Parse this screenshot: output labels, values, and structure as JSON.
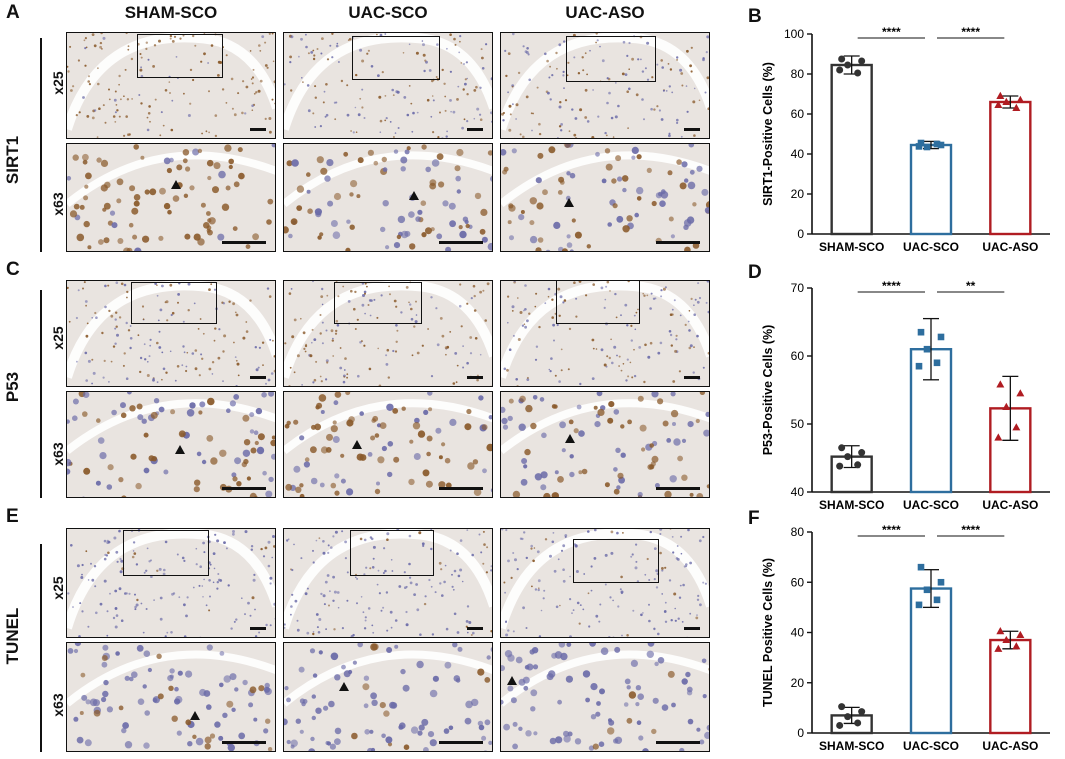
{
  "panel_letters": [
    "A",
    "B",
    "C",
    "D",
    "E",
    "F"
  ],
  "column_headers": [
    "SHAM-SCO",
    "UAC-SCO",
    "UAC-ASO"
  ],
  "row_groups": [
    "SIRT1",
    "P53",
    "TUNEL"
  ],
  "magnifications": [
    "x25",
    "x63"
  ],
  "colors": {
    "SHAM-SCO": "#333333",
    "UAC-SCO": "#2e6e9e",
    "UAC-ASO": "#b01c22",
    "tissue_brown_stain": "#8a5a2b",
    "tissue_hematoxylin": "#6b6ba8",
    "tissue_background": "#e9e4e0"
  },
  "chart_data": [
    {
      "type": "bar",
      "panel": "B",
      "categories": [
        "SHAM-SCO",
        "UAC-SCO",
        "UAC-ASO"
      ],
      "values": [
        84.5,
        44.5,
        66.0
      ],
      "errors": [
        4.5,
        1.8,
        3.0
      ],
      "points": [
        [
          87.5,
          86.5,
          84.5,
          80.5,
          82.0
        ],
        [
          45.5,
          44.5,
          43.5,
          45.0,
          43.8
        ],
        [
          69.0,
          67.0,
          66.0,
          63.0,
          64.5
        ]
      ],
      "markers": [
        "circle",
        "square",
        "triangle"
      ],
      "ylabel": "SIRT1-Positive Cells (%)",
      "ylim": [
        0,
        100
      ],
      "yticks": [
        0,
        20,
        40,
        60,
        80,
        100
      ],
      "significance": [
        {
          "from": 0,
          "to": 1,
          "label": "****"
        },
        {
          "from": 1,
          "to": 2,
          "label": "****"
        }
      ]
    },
    {
      "type": "bar",
      "panel": "D",
      "categories": [
        "SHAM-SCO",
        "UAC-SCO",
        "UAC-ASO"
      ],
      "values": [
        45.2,
        61.0,
        52.3
      ],
      "errors": [
        1.6,
        4.5,
        4.7
      ],
      "points": [
        [
          46.5,
          45.8,
          45.2,
          44.0,
          43.8
        ],
        [
          63.5,
          62.8,
          61.0,
          59.0,
          58.5
        ],
        [
          55.8,
          54.5,
          52.5,
          49.5,
          48.0
        ]
      ],
      "markers": [
        "circle",
        "square",
        "triangle"
      ],
      "ylabel": "P53-Positive Cells (%)",
      "ylim": [
        40,
        70
      ],
      "yticks": [
        40,
        50,
        60,
        70
      ],
      "significance": [
        {
          "from": 0,
          "to": 1,
          "label": "****"
        },
        {
          "from": 1,
          "to": 2,
          "label": "**"
        }
      ]
    },
    {
      "type": "bar",
      "panel": "F",
      "categories": [
        "SHAM-SCO",
        "UAC-SCO",
        "UAC-ASO"
      ],
      "values": [
        7.0,
        57.5,
        37.0
      ],
      "errors": [
        3.2,
        7.5,
        3.5
      ],
      "points": [
        [
          10.5,
          8.5,
          6.5,
          4.0,
          3.0
        ],
        [
          66.0,
          60.0,
          57.0,
          53.0,
          51.0
        ],
        [
          40.5,
          39.0,
          37.0,
          34.5,
          33.5
        ]
      ],
      "markers": [
        "circle",
        "square",
        "triangle"
      ],
      "ylabel": "TUNEL Positive Cells (%)",
      "ylim": [
        0,
        80
      ],
      "yticks": [
        0,
        20,
        40,
        60,
        80
      ],
      "significance": [
        {
          "from": 0,
          "to": 1,
          "label": "****"
        },
        {
          "from": 1,
          "to": 2,
          "label": "****"
        }
      ]
    }
  ]
}
